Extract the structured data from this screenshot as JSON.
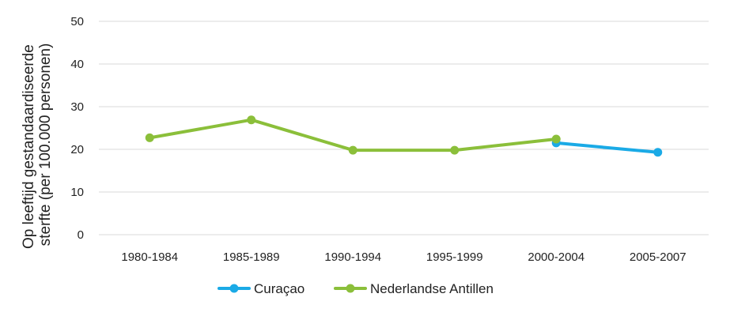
{
  "chart_data": {
    "type": "line",
    "title": "",
    "xlabel": "",
    "ylabel": "Op leeftijd gestandaardiseerde sterfte (per 100.000 personen)",
    "ylabel_lines": [
      "Op leeftijd gestandaardiseerde",
      "sterfte (per 100.000 personen)"
    ],
    "categories": [
      "1980-1984",
      "1985-1989",
      "1990-1994",
      "1995-1999",
      "2000-2004",
      "2005-2007"
    ],
    "ylim": [
      0,
      50
    ],
    "yticks": [
      0,
      10,
      20,
      30,
      40,
      50
    ],
    "grid": true,
    "legend_position": "bottom",
    "series": [
      {
        "name": "Curaçao",
        "color": "#1aaae6",
        "values": [
          null,
          null,
          null,
          null,
          21.5,
          19.3
        ]
      },
      {
        "name": "Nederlandse Antillen",
        "color": "#8bbf3a",
        "values": [
          22.7,
          26.9,
          19.8,
          19.8,
          22.4,
          null
        ]
      }
    ]
  }
}
